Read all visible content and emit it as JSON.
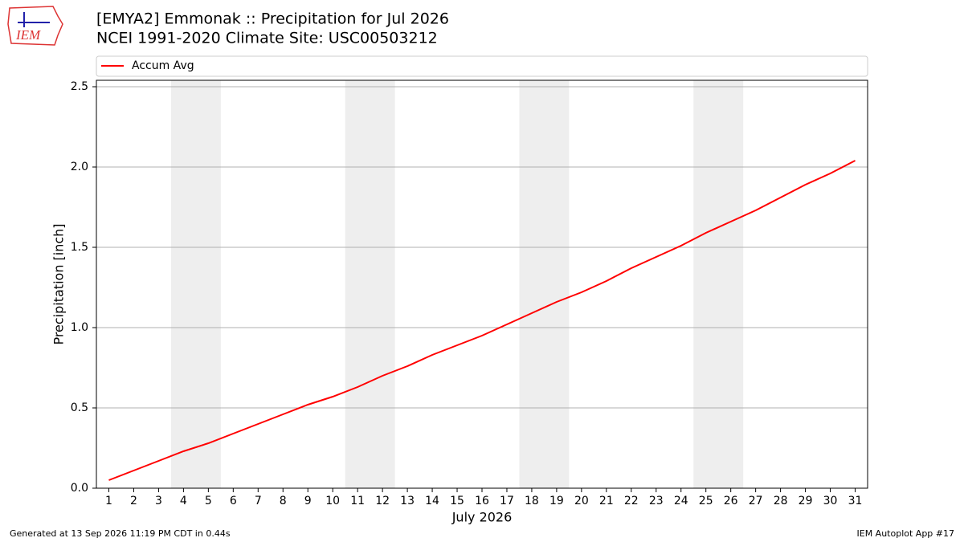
{
  "logo_text": "IEM",
  "footer_left": "Generated at 13 Sep 2026 11:19 PM CDT in 0.44s",
  "footer_right": "IEM Autoplot App #17",
  "chart_data": {
    "type": "line",
    "title": "[EMYA2] Emmonak :: Precipitation for Jul 2026",
    "subtitle": "NCEI 1991-2020 Climate Site: USC00503212",
    "xlabel": "July 2026",
    "ylabel": "Precipitation [inch]",
    "x": [
      1,
      2,
      3,
      4,
      5,
      6,
      7,
      8,
      9,
      10,
      11,
      12,
      13,
      14,
      15,
      16,
      17,
      18,
      19,
      20,
      21,
      22,
      23,
      24,
      25,
      26,
      27,
      28,
      29,
      30,
      31
    ],
    "series": [
      {
        "name": "Accum Avg",
        "color": "#ff0000",
        "values": [
          0.05,
          0.11,
          0.17,
          0.23,
          0.28,
          0.34,
          0.4,
          0.46,
          0.52,
          0.57,
          0.63,
          0.7,
          0.76,
          0.83,
          0.89,
          0.95,
          1.02,
          1.09,
          1.16,
          1.22,
          1.29,
          1.37,
          1.44,
          1.51,
          1.59,
          1.66,
          1.73,
          1.81,
          1.89,
          1.96,
          2.04
        ]
      }
    ],
    "weekend_spans": [
      [
        3.5,
        5.5
      ],
      [
        10.5,
        12.5
      ],
      [
        17.5,
        19.5
      ],
      [
        24.5,
        26.5
      ]
    ],
    "span_color": "#eeeeee",
    "xlim": [
      0.5,
      31.5
    ],
    "xticks": [
      1,
      2,
      3,
      4,
      5,
      6,
      7,
      8,
      9,
      10,
      11,
      12,
      13,
      14,
      15,
      16,
      17,
      18,
      19,
      20,
      21,
      22,
      23,
      24,
      25,
      26,
      27,
      28,
      29,
      30,
      31
    ],
    "ylim": [
      0,
      2.54
    ],
    "yticks": [
      {
        "value": 0,
        "label": "0.0"
      },
      0.5,
      {
        "value": 1,
        "label": "1.0"
      },
      1.5,
      {
        "value": 2,
        "label": "2.0"
      },
      2.5
    ],
    "grid": true
  }
}
